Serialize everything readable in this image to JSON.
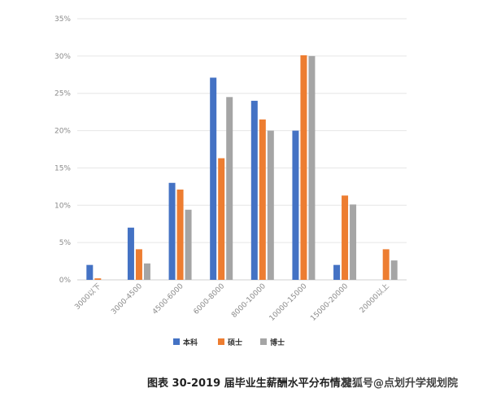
{
  "chart_data": {
    "type": "bar",
    "categories": [
      "3000以下",
      "3000-4500",
      "4500-6000",
      "6000-8000",
      "8000-10000",
      "10000-15000",
      "15000-20000",
      "20000以上"
    ],
    "series": [
      {
        "name": "本科",
        "color": "#4472c4",
        "values": [
          2.0,
          7.0,
          13.0,
          27.1,
          24.0,
          20.0,
          2.0,
          0.0
        ]
      },
      {
        "name": "硕士",
        "color": "#ed7d31",
        "values": [
          0.2,
          4.1,
          12.1,
          16.3,
          21.5,
          30.1,
          11.3,
          4.1
        ]
      },
      {
        "name": "博士",
        "color": "#a5a5a5",
        "values": [
          0.0,
          2.2,
          9.4,
          24.5,
          20.0,
          30.0,
          10.1,
          2.6
        ]
      }
    ],
    "yticks": [
      "0%",
      "5%",
      "10%",
      "15%",
      "20%",
      "25%",
      "30%",
      "35%"
    ],
    "ylim": [
      0,
      35
    ],
    "grid": true,
    "legend_position": "bottom"
  },
  "caption": "图表 30-2019 届毕业生薪酬水平分布情况",
  "watermark": "搜狐号@点划升学规划院"
}
